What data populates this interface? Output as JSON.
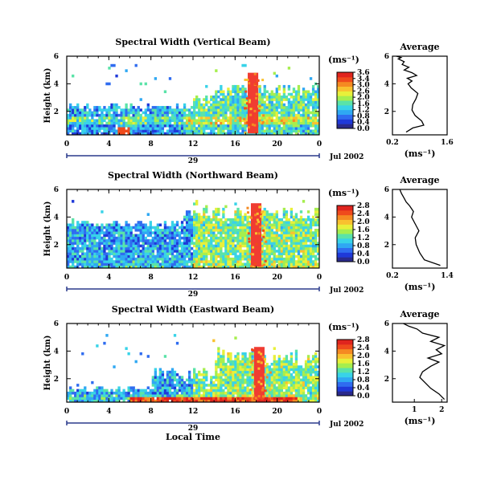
{
  "figure": {
    "bottom_label": "Local Time",
    "date_day": "29",
    "date_label": "Jul 2002"
  },
  "colorscale": [
    "#2a2a8c",
    "#1f39d9",
    "#2f6cf0",
    "#2fa8f3",
    "#38d3e8",
    "#5ae3a8",
    "#a6ee4e",
    "#e8f03a",
    "#f9c12f",
    "#f58a22",
    "#ef4a1c",
    "#e0241e"
  ],
  "colors": {
    "missing": "#ffffff",
    "axis": "#000000",
    "extreme": "#f03c32"
  },
  "panels": [
    {
      "title": "Spectral Width (Vertical Beam)",
      "ylabel": "Height (km)",
      "xlabel_ticks": [
        "0",
        "4",
        "8",
        "12",
        "16",
        "20",
        "0"
      ],
      "ytick_labels": [
        "6",
        "4",
        "2"
      ],
      "units": "(ms⁻¹)",
      "colorbar_ticks": [
        "3.6",
        "3.4",
        "3.0",
        "2.6",
        "2.0",
        "1.6",
        "1.2",
        "0.8",
        "0.4",
        "0.0"
      ],
      "avg_title": "Average",
      "avg_xlabel": "(ms⁻¹)",
      "avg_xticks": [
        "0.2",
        "1.6"
      ],
      "avg_yticks": [
        "6",
        "4",
        "2"
      ]
    },
    {
      "title": "Spectral Width (Northward Beam)",
      "ylabel": "Height (km)",
      "xlabel_ticks": [
        "0",
        "4",
        "8",
        "12",
        "16",
        "20",
        "0"
      ],
      "ytick_labels": [
        "6",
        "4",
        "2"
      ],
      "units": "(ms⁻¹)",
      "colorbar_ticks": [
        "2.8",
        "2.4",
        "2.0",
        "1.6",
        "1.2",
        "0.8",
        "0.4",
        "0.0"
      ],
      "avg_title": "Average",
      "avg_xlabel": "(ms⁻¹)",
      "avg_xticks": [
        "0.2",
        "1.4"
      ],
      "avg_yticks": [
        "6",
        "4",
        "2"
      ]
    },
    {
      "title": "Spectral Width (Eastward Beam)",
      "ylabel": "Height (km)",
      "xlabel_ticks": [
        "0",
        "4",
        "8",
        "12",
        "16",
        "20",
        "0"
      ],
      "ytick_labels": [
        "6",
        "4",
        "2"
      ],
      "units": "(ms⁻¹)",
      "colorbar_ticks": [
        "2.8",
        "2.4",
        "2.0",
        "1.6",
        "1.2",
        "0.8",
        "0.4",
        "0.0"
      ],
      "avg_title": "Average",
      "avg_xlabel": "(ms⁻¹)",
      "avg_xticks": [
        "1",
        "2"
      ],
      "avg_yticks": [
        "6",
        "4",
        "2"
      ]
    }
  ],
  "chart_data": [
    {
      "type": "heatmap",
      "title": "Spectral Width (Vertical Beam)",
      "xlabel": "",
      "ylabel": "Height (km)",
      "colorbar_label": "(ms⁻¹)",
      "x_range_hours": [
        0,
        24
      ],
      "y_range_km": [
        0.3,
        6.0
      ],
      "z_range": [
        0.0,
        3.6
      ],
      "features": [
        {
          "description": "low-level layer",
          "time_hours": [
            0,
            24
          ],
          "top_km": 1.2
        },
        {
          "description": "deep convective plume",
          "time_hours": [
            17.2,
            18.2
          ],
          "height_km": [
            0.4,
            4.8
          ],
          "value": 3.6
        }
      ]
    },
    {
      "type": "line",
      "title": "Average",
      "xlabel": "(ms⁻¹)",
      "ylabel": "Height (km)",
      "xlim": [
        0.2,
        1.6
      ],
      "ylim": [
        0.3,
        6.0
      ],
      "x": [
        0.55,
        0.72,
        1.0,
        0.95,
        0.78,
        0.7,
        0.72,
        0.8,
        0.85,
        0.68,
        0.6,
        0.7,
        0.58,
        0.82,
        0.7,
        0.5,
        0.62,
        0.45,
        0.5,
        0.35,
        0.42,
        0.3
      ],
      "y": [
        0.5,
        0.8,
        1.0,
        1.3,
        1.7,
        2.1,
        2.5,
        2.9,
        3.3,
        3.7,
        4.0,
        4.2,
        4.4,
        4.6,
        4.8,
        5.0,
        5.2,
        5.4,
        5.6,
        5.8,
        5.9,
        6.0
      ]
    },
    {
      "type": "heatmap",
      "title": "Spectral Width (Northward Beam)",
      "xlabel": "",
      "ylabel": "Height (km)",
      "colorbar_label": "(ms⁻¹)",
      "x_range_hours": [
        0,
        24
      ],
      "y_range_km": [
        0.3,
        6.0
      ],
      "z_range": [
        0.0,
        2.8
      ],
      "features": [
        {
          "description": "deep convective plume",
          "time_hours": [
            17.5,
            18.5
          ],
          "height_km": [
            0.4,
            5.0
          ],
          "value": 2.8
        }
      ]
    },
    {
      "type": "line",
      "title": "Average",
      "xlabel": "(ms⁻¹)",
      "ylabel": "Height (km)",
      "xlim": [
        0.2,
        1.4
      ],
      "ylim": [
        0.3,
        6.0
      ],
      "x": [
        1.25,
        0.9,
        0.8,
        0.72,
        0.7,
        0.78,
        0.7,
        0.62,
        0.66,
        0.58,
        0.5,
        0.45,
        0.4,
        0.36
      ],
      "y": [
        0.5,
        0.9,
        1.4,
        2.0,
        2.5,
        3.0,
        3.5,
        4.0,
        4.4,
        4.8,
        5.1,
        5.4,
        5.7,
        6.0
      ]
    },
    {
      "type": "heatmap",
      "title": "Spectral Width (Eastward Beam)",
      "xlabel": "Local Time",
      "ylabel": "Height (km)",
      "colorbar_label": "(ms⁻¹)",
      "x_range_hours": [
        0,
        24
      ],
      "y_range_km": [
        0.3,
        6.0
      ],
      "z_range": [
        0.0,
        2.8
      ],
      "features": [
        {
          "description": "deep convective plume",
          "time_hours": [
            17.8,
            18.8
          ],
          "height_km": [
            0.5,
            4.3
          ],
          "value": 2.8
        }
      ]
    },
    {
      "type": "line",
      "title": "Average",
      "xlabel": "(ms⁻¹)",
      "ylabel": "Height (km)",
      "xlim": [
        0.2,
        2.2
      ],
      "ylim": [
        0.3,
        6.0
      ],
      "x": [
        2.1,
        1.9,
        1.6,
        1.4,
        1.2,
        1.3,
        1.6,
        1.9,
        1.5,
        2.0,
        1.8,
        2.1,
        1.6,
        1.9,
        1.3,
        1.1,
        0.8,
        0.6
      ],
      "y": [
        0.5,
        0.9,
        1.3,
        1.7,
        2.1,
        2.5,
        2.9,
        3.2,
        3.5,
        3.8,
        4.1,
        4.4,
        4.7,
        5.0,
        5.3,
        5.6,
        5.8,
        6.0
      ]
    }
  ]
}
